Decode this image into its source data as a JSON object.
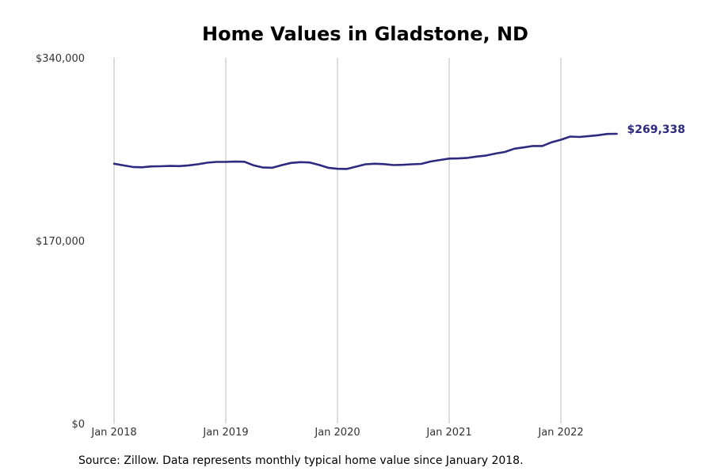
{
  "chart_data": {
    "type": "line",
    "title": "Home Values in Gladstone, ND",
    "xlabel": "",
    "ylabel": "",
    "y_ticks": [
      "$0",
      "$170,000",
      "$340,000"
    ],
    "y_tick_values": [
      0,
      170000,
      340000
    ],
    "ylim": [
      0,
      340000
    ],
    "x_ticks": [
      "Jan 2018",
      "Jan 2019",
      "Jan 2020",
      "Jan 2021",
      "Jan 2022"
    ],
    "x_tick_values": [
      "2018-01",
      "2019-01",
      "2020-01",
      "2021-01",
      "2022-01"
    ],
    "xlim": [
      "2018-01",
      "2022-07"
    ],
    "grid": "vertical",
    "series": [
      {
        "color": "#2e2a7f",
        "x": [
          "2018-01",
          "2018-02",
          "2018-03",
          "2018-04",
          "2018-05",
          "2018-06",
          "2018-07",
          "2018-08",
          "2018-09",
          "2018-10",
          "2018-11",
          "2018-12",
          "2019-01",
          "2019-02",
          "2019-03",
          "2019-04",
          "2019-05",
          "2019-06",
          "2019-07",
          "2019-08",
          "2019-09",
          "2019-10",
          "2019-11",
          "2019-12",
          "2020-01",
          "2020-02",
          "2020-03",
          "2020-04",
          "2020-05",
          "2020-06",
          "2020-07",
          "2020-08",
          "2020-09",
          "2020-10",
          "2020-11",
          "2020-12",
          "2021-01",
          "2021-02",
          "2021-03",
          "2021-04",
          "2021-05",
          "2021-06",
          "2021-07",
          "2021-08",
          "2021-09",
          "2021-10",
          "2021-11",
          "2021-12",
          "2022-01",
          "2022-02",
          "2022-03",
          "2022-04",
          "2022-05",
          "2022-06",
          "2022-07"
        ],
        "values": [
          241500,
          240000,
          238500,
          238200,
          239000,
          239200,
          239500,
          239300,
          240000,
          241000,
          242500,
          243200,
          243200,
          243500,
          243400,
          240000,
          238000,
          237800,
          240200,
          242300,
          243000,
          242700,
          240500,
          237800,
          236800,
          236700,
          238800,
          241000,
          241500,
          241200,
          240300,
          240500,
          241000,
          241400,
          243600,
          245000,
          246300,
          246500,
          247000,
          248200,
          249200,
          251000,
          252500,
          255500,
          256700,
          258000,
          258000,
          261500,
          263800,
          266800,
          266400,
          267200,
          268000,
          269200,
          269338
        ]
      }
    ],
    "end_label": "$269,338",
    "source": "Source: Zillow. Data represents monthly typical home value since January 2018."
  }
}
